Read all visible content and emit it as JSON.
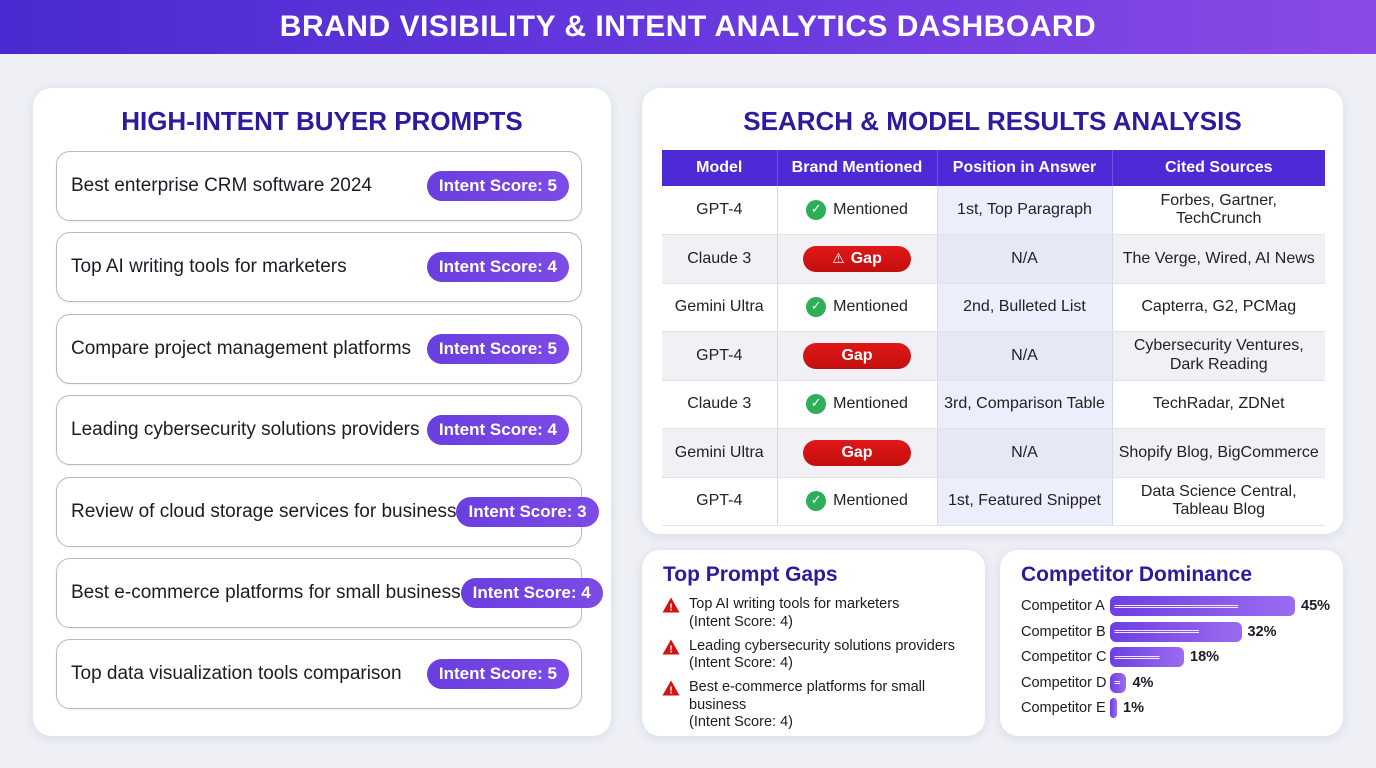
{
  "header": {
    "title": "BRAND VISIBILITY & INTENT ANALYTICS DASHBOARD"
  },
  "prompts_panel": {
    "title": "HIGH-INTENT BUYER PROMPTS",
    "items": [
      {
        "text": "Best enterprise CRM software 2024",
        "score": "Intent Score: 5"
      },
      {
        "text": "Top AI writing tools for marketers",
        "score": "Intent Score: 4"
      },
      {
        "text": "Compare project management platforms",
        "score": "Intent Score: 5"
      },
      {
        "text": "Leading cybersecurity solutions providers",
        "score": "Intent Score: 4"
      },
      {
        "text": "Review of cloud storage services for business",
        "score": "Intent Score: 3"
      },
      {
        "text": "Best e-commerce platforms for small business",
        "score": "Intent Score: 4"
      },
      {
        "text": "Top data visualization tools comparison",
        "score": "Intent Score: 5"
      }
    ]
  },
  "results_panel": {
    "title": "SEARCH & MODEL RESULTS ANALYSIS",
    "columns": [
      "Model",
      "Brand Mentioned",
      "Position in Answer",
      "Cited Sources"
    ],
    "rows": [
      {
        "model": "GPT-4",
        "status": "mentioned",
        "label": "Mentioned",
        "position": "1st, Top Paragraph",
        "sources": "Forbes, Gartner, TechCrunch"
      },
      {
        "model": "Claude 3",
        "status": "gap-warn",
        "label": "Gap",
        "position": "N/A",
        "sources": "The Verge, Wired, AI News"
      },
      {
        "model": "Gemini Ultra",
        "status": "mentioned",
        "label": "Mentioned",
        "position": "2nd, Bulleted List",
        "sources": "Capterra, G2, PCMag"
      },
      {
        "model": "GPT-4",
        "status": "gap",
        "label": "Gap",
        "position": "N/A",
        "sources": "Cybersecurity Ventures, Dark Reading"
      },
      {
        "model": "Claude 3",
        "status": "mentioned",
        "label": "Mentioned",
        "position": "3rd, Comparison Table",
        "sources": "TechRadar, ZDNet"
      },
      {
        "model": "Gemini Ultra",
        "status": "gap",
        "label": "Gap",
        "position": "N/A",
        "sources": "Shopify Blog, BigCommerce"
      },
      {
        "model": "GPT-4",
        "status": "mentioned",
        "label": "Mentioned",
        "position": "1st, Featured Snippet",
        "sources": "Data Science Central, Tableau Blog"
      }
    ]
  },
  "gaps_panel": {
    "title": "Top Prompt Gaps",
    "items": [
      {
        "line1": "Top AI writing tools for marketers",
        "line2": "(Intent Score: 4)"
      },
      {
        "line1": "Leading cybersecurity solutions providers",
        "line2": "(Intent Score: 4)"
      },
      {
        "line1": "Best e-commerce platforms for small business",
        "line2": "(Intent Score: 4)"
      }
    ]
  },
  "dominance_panel": {
    "title": "Competitor Dominance",
    "items": [
      {
        "name": "Competitor A",
        "percent": 45,
        "label": "45%",
        "bar_text": "======================"
      },
      {
        "name": "Competitor B",
        "percent": 32,
        "label": "32%",
        "bar_text": "==============="
      },
      {
        "name": "Competitor C",
        "percent": 18,
        "label": "18%",
        "bar_text": "========"
      },
      {
        "name": "Competitor D",
        "percent": 4,
        "label": "4%",
        "bar_text": "="
      },
      {
        "name": "Competitor E",
        "percent": 1,
        "label": "1%",
        "bar_text": ""
      }
    ]
  },
  "colors": {
    "header_start": "#4a2ad0",
    "header_end": "#8a4ae6",
    "title_text": "#2e1a9e",
    "pill": "#6a3ee0",
    "mentioned": "#2fae5a",
    "gap": "#d41212"
  },
  "icons": {
    "mentioned": "check-circle-icon",
    "gap": "warning-triangle-icon"
  }
}
